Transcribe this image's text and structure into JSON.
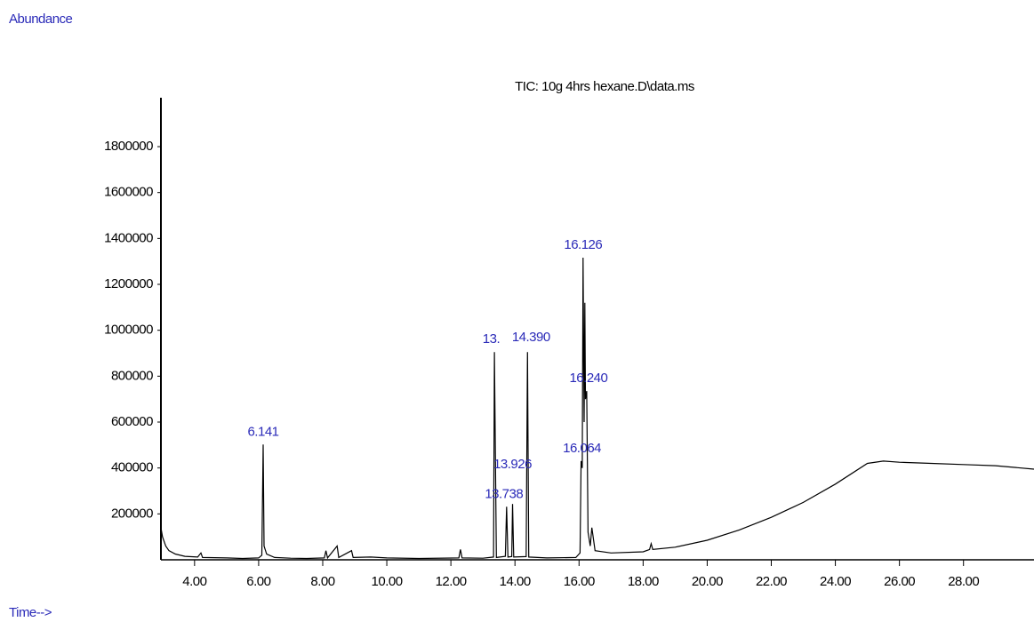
{
  "chart_data": {
    "type": "line",
    "y_label": "Abundance",
    "title": "TIC: 10g 4hrs hexane.D\\data.ms",
    "x_label": "Time-->",
    "x": [
      2.95,
      3.0,
      3.1,
      3.2,
      3.4,
      3.7,
      4.1,
      4.2,
      4.25,
      5.0,
      5.5,
      6.0,
      6.1,
      6.141,
      6.17,
      6.25,
      6.5,
      7.0,
      7.5,
      8.05,
      8.1,
      8.15,
      8.45,
      8.5,
      8.9,
      8.95,
      9.5,
      10.0,
      11.0,
      12.25,
      12.3,
      12.35,
      13.0,
      13.33,
      13.36,
      13.42,
      13.7,
      13.738,
      13.78,
      13.9,
      13.926,
      13.96,
      14.35,
      14.39,
      14.43,
      15.0,
      15.9,
      16.03,
      16.064,
      16.1,
      16.126,
      16.16,
      16.18,
      16.2,
      16.24,
      16.28,
      16.35,
      16.4,
      16.5,
      17.0,
      18.0,
      18.2,
      18.25,
      18.3,
      19.0,
      20.0,
      21.0,
      22.0,
      23.0,
      24.0,
      25.0,
      25.5,
      26.0,
      27.0,
      28.0,
      29.0,
      30.2
    ],
    "series": [
      {
        "color": "#000000",
        "values": [
          140000,
          100000,
          60000,
          40000,
          25000,
          15000,
          12000,
          30000,
          10000,
          8000,
          6000,
          8000,
          20000,
          502000,
          60000,
          25000,
          10000,
          7000,
          6000,
          8000,
          40000,
          8000,
          60000,
          10000,
          40000,
          10000,
          12000,
          8000,
          6000,
          8000,
          45000,
          8000,
          7000,
          12000,
          905000,
          10000,
          15000,
          231000,
          12000,
          14000,
          243000,
          12000,
          14000,
          905000,
          12000,
          8000,
          10000,
          30000,
          430000,
          400000,
          1316000,
          600000,
          1120000,
          700000,
          735000,
          120000,
          60000,
          140000,
          40000,
          30000,
          35000,
          45000,
          70000,
          45000,
          55000,
          85000,
          130000,
          185000,
          250000,
          330000,
          420000,
          430000,
          425000,
          420000,
          415000,
          410000,
          395000
        ]
      }
    ],
    "peak_labels": [
      {
        "x": 6.141,
        "y": 502000,
        "label": "6.141"
      },
      {
        "x": 13.36,
        "y": 905000,
        "label": "13."
      },
      {
        "x": 13.738,
        "y": 231000,
        "label": "13.738"
      },
      {
        "x": 13.926,
        "y": 243000,
        "label": "13.926"
      },
      {
        "x": 14.39,
        "y": 905000,
        "label": "14.390"
      },
      {
        "x": 16.064,
        "y": 430000,
        "label": "16.064"
      },
      {
        "x": 16.126,
        "y": 1316000,
        "label": "16.126"
      },
      {
        "x": 16.24,
        "y": 735000,
        "label": "16.240"
      }
    ],
    "label_color": "#2a2ab8",
    "xlim": [
      2.95,
      30.2
    ],
    "ylim": [
      0,
      2013000
    ],
    "xticks": [
      {
        "value": 4,
        "label": "4.00"
      },
      {
        "value": 6,
        "label": "6.00"
      },
      {
        "value": 8,
        "label": "8.00"
      },
      {
        "value": 10,
        "label": "10.00"
      },
      {
        "value": 12,
        "label": "12.00"
      },
      {
        "value": 14,
        "label": "14.00"
      },
      {
        "value": 16,
        "label": "16.00"
      },
      {
        "value": 18,
        "label": "18.00"
      },
      {
        "value": 20,
        "label": "20.00"
      },
      {
        "value": 22,
        "label": "22.00"
      },
      {
        "value": 24,
        "label": "24.00"
      },
      {
        "value": 26,
        "label": "26.00"
      },
      {
        "value": 28,
        "label": "28.00"
      }
    ],
    "yticks": [
      200000,
      400000,
      600000,
      800000,
      1000000,
      1200000,
      1400000,
      1600000,
      1800000
    ]
  }
}
